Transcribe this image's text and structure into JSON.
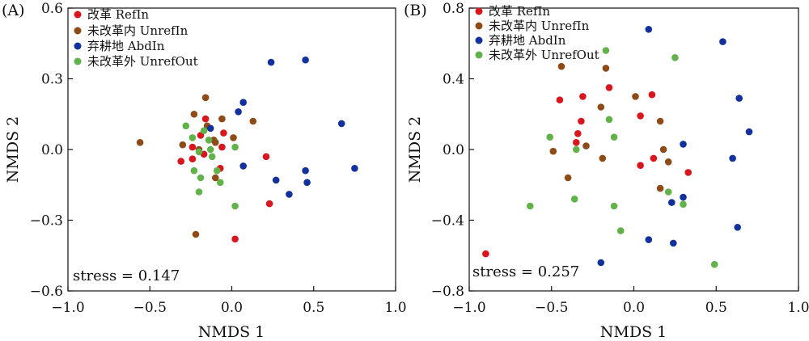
{
  "colors": {
    "RefIn": "#d9161e",
    "UnrefIn": "#8e4b18",
    "AbdIn": "#13319c",
    "UnrefOut": "#62b24a"
  },
  "chart_data": [
    {
      "type": "scatter",
      "panel_label": "(A)",
      "xlabel": "NMDS 1",
      "ylabel": "NMDS 2",
      "xlim": [
        -1.0,
        1.0
      ],
      "ylim": [
        -0.6,
        0.6
      ],
      "xticks": [
        -1.0,
        -0.5,
        0.0,
        0.5,
        1.0
      ],
      "xtick_labels": [
        "−1.0",
        "−0.5",
        "0.0",
        "0.5",
        "1.0"
      ],
      "yticks": [
        -0.6,
        -0.3,
        0.0,
        0.3,
        0.6
      ],
      "ytick_labels": [
        "−0.6",
        "−0.3",
        "0.0",
        "0.3",
        "0.6"
      ],
      "legend_position": "top-left",
      "grid": false,
      "stress_label": "stress = 0.147",
      "series": [
        {
          "name": "改革  RefIn",
          "key": "RefIn",
          "points": [
            [
              -0.16,
              0.13
            ],
            [
              -0.05,
              0.07
            ],
            [
              -0.19,
              0.06
            ],
            [
              -0.24,
              0.01
            ],
            [
              -0.06,
              0.01
            ],
            [
              -0.17,
              -0.02
            ],
            [
              -0.31,
              -0.05
            ],
            [
              -0.24,
              -0.04
            ],
            [
              -0.07,
              -0.08
            ],
            [
              0.21,
              -0.03
            ],
            [
              0.23,
              -0.23
            ],
            [
              0.02,
              -0.38
            ]
          ]
        },
        {
          "name": "未改革内 UnrefIn",
          "key": "UnrefIn",
          "points": [
            [
              -0.16,
              0.22
            ],
            [
              -0.23,
              0.15
            ],
            [
              -0.15,
              0.1
            ],
            [
              -0.06,
              0.13
            ],
            [
              0.13,
              0.12
            ],
            [
              0.01,
              0.05
            ],
            [
              -0.1,
              0.03
            ],
            [
              -0.56,
              0.03
            ],
            [
              -0.3,
              0.02
            ],
            [
              -0.11,
              0.04
            ],
            [
              -0.2,
              0.0
            ],
            [
              -0.1,
              -0.12
            ],
            [
              -0.22,
              -0.36
            ]
          ]
        },
        {
          "name": "弃耕地 AbdIn",
          "key": "AbdIn",
          "points": [
            [
              0.24,
              0.37
            ],
            [
              0.45,
              0.38
            ],
            [
              0.07,
              0.2
            ],
            [
              0.04,
              0.16
            ],
            [
              -0.13,
              0.09
            ],
            [
              0.67,
              0.11
            ],
            [
              0.75,
              -0.08
            ],
            [
              0.07,
              -0.07
            ],
            [
              0.45,
              -0.09
            ],
            [
              0.27,
              -0.13
            ],
            [
              0.46,
              -0.14
            ],
            [
              0.35,
              -0.19
            ]
          ]
        },
        {
          "name": "未改革外 UnrefOut",
          "key": "UnrefOut",
          "points": [
            [
              -0.28,
              0.1
            ],
            [
              -0.17,
              0.08
            ],
            [
              -0.24,
              0.05
            ],
            [
              -0.14,
              0.04
            ],
            [
              -0.13,
              0.0
            ],
            [
              0.02,
              0.01
            ],
            [
              -0.2,
              -0.01
            ],
            [
              -0.12,
              -0.03
            ],
            [
              -0.23,
              -0.09
            ],
            [
              -0.09,
              -0.09
            ],
            [
              -0.19,
              -0.12
            ],
            [
              -0.07,
              -0.14
            ],
            [
              -0.2,
              -0.18
            ],
            [
              0.02,
              -0.24
            ]
          ]
        }
      ]
    },
    {
      "type": "scatter",
      "panel_label": "(B)",
      "xlabel": "NMDS 1",
      "ylabel": "NMDS 2",
      "xlim": [
        -1.0,
        1.0
      ],
      "ylim": [
        -0.8,
        0.8
      ],
      "xticks": [
        -1.0,
        -0.5,
        0.0,
        0.5,
        1.0
      ],
      "xtick_labels": [
        "−1.0",
        "−0.5",
        "0.0",
        "0.5",
        "1.0"
      ],
      "yticks": [
        -0.8,
        -0.4,
        0.0,
        0.4,
        0.8
      ],
      "ytick_labels": [
        "−0.8",
        "−0.4",
        "0.0",
        "0.4",
        "0.8"
      ],
      "legend_position": "top-left",
      "grid": false,
      "stress_label": "stress = 0.257",
      "series": [
        {
          "name": "改革  RefIn",
          "key": "RefIn",
          "points": [
            [
              -0.45,
              0.28
            ],
            [
              -0.31,
              0.3
            ],
            [
              -0.15,
              0.35
            ],
            [
              0.11,
              0.31
            ],
            [
              -0.32,
              0.16
            ],
            [
              0.04,
              0.19
            ],
            [
              -0.34,
              0.09
            ],
            [
              -0.35,
              0.04
            ],
            [
              0.12,
              -0.05
            ],
            [
              0.04,
              -0.09
            ],
            [
              0.33,
              -0.13
            ],
            [
              -0.9,
              -0.59
            ]
          ]
        },
        {
          "name": "未改革内 UnrefIn",
          "key": "UnrefIn",
          "points": [
            [
              -0.17,
              0.46
            ],
            [
              -0.44,
              0.47
            ],
            [
              0.01,
              0.3
            ],
            [
              -0.2,
              0.24
            ],
            [
              0.16,
              0.16
            ],
            [
              -0.29,
              0.02
            ],
            [
              -0.49,
              -0.01
            ],
            [
              0.18,
              0.0
            ],
            [
              -0.19,
              -0.05
            ],
            [
              0.21,
              -0.07
            ],
            [
              -0.4,
              -0.16
            ],
            [
              0.16,
              -0.22
            ]
          ]
        },
        {
          "name": "弃耕地 AbdIn",
          "key": "AbdIn",
          "points": [
            [
              0.09,
              0.68
            ],
            [
              0.54,
              0.61
            ],
            [
              0.64,
              0.29
            ],
            [
              0.7,
              0.1
            ],
            [
              0.3,
              0.03
            ],
            [
              0.6,
              -0.05
            ],
            [
              0.3,
              -0.27
            ],
            [
              0.23,
              -0.3
            ],
            [
              0.63,
              -0.44
            ],
            [
              0.09,
              -0.51
            ],
            [
              0.24,
              -0.53
            ],
            [
              -0.2,
              -0.64
            ]
          ]
        },
        {
          "name": "未改革外 UnrefOut",
          "key": "UnrefOut",
          "points": [
            [
              -0.17,
              0.56
            ],
            [
              0.25,
              0.52
            ],
            [
              -0.15,
              0.17
            ],
            [
              -0.12,
              0.07
            ],
            [
              -0.51,
              0.07
            ],
            [
              -0.35,
              0.0
            ],
            [
              0.21,
              -0.24
            ],
            [
              0.3,
              -0.31
            ],
            [
              -0.36,
              -0.28
            ],
            [
              -0.12,
              -0.32
            ],
            [
              -0.63,
              -0.32
            ],
            [
              -0.08,
              -0.46
            ],
            [
              0.49,
              -0.65
            ]
          ]
        }
      ]
    }
  ]
}
